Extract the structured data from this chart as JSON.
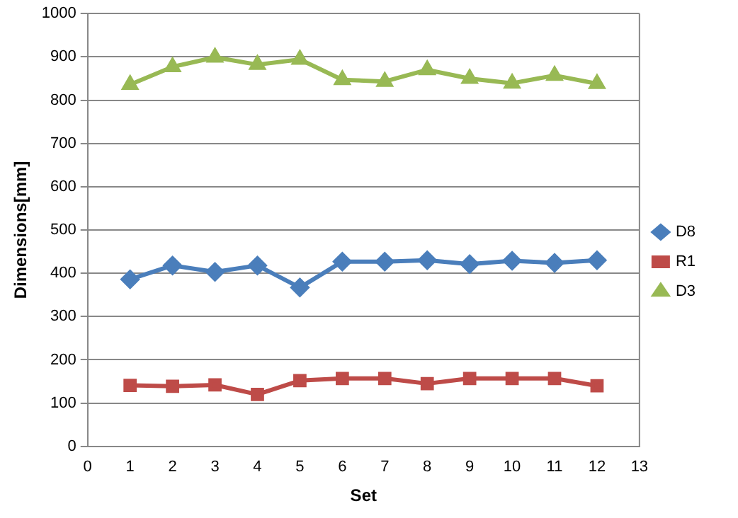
{
  "chart_data": {
    "type": "line",
    "xlabel": "Set",
    "ylabel": "Dimensions[mm]",
    "x": [
      1,
      2,
      3,
      4,
      5,
      6,
      7,
      8,
      9,
      10,
      11,
      12
    ],
    "xlim": [
      0,
      13
    ],
    "xticks": [
      0,
      1,
      2,
      3,
      4,
      5,
      6,
      7,
      8,
      9,
      10,
      11,
      12,
      13
    ],
    "ylim": [
      0,
      1000
    ],
    "yticks": [
      0,
      100,
      200,
      300,
      400,
      500,
      600,
      700,
      800,
      900,
      1000
    ],
    "grid": "y",
    "legend": "right",
    "series": [
      {
        "name": "D8",
        "color": "#4a7ebb",
        "marker": "diamond",
        "values": [
          386,
          418,
          403,
          418,
          367,
          427,
          427,
          430,
          421,
          429,
          424,
          430
        ]
      },
      {
        "name": "R1",
        "color": "#be4b48",
        "marker": "square",
        "values": [
          141,
          139,
          142,
          120,
          152,
          157,
          157,
          145,
          157,
          157,
          157,
          140
        ]
      },
      {
        "name": "D3",
        "color": "#98b954",
        "marker": "triangle",
        "values": [
          836,
          877,
          899,
          882,
          894,
          847,
          843,
          870,
          850,
          839,
          857,
          838
        ]
      }
    ]
  }
}
